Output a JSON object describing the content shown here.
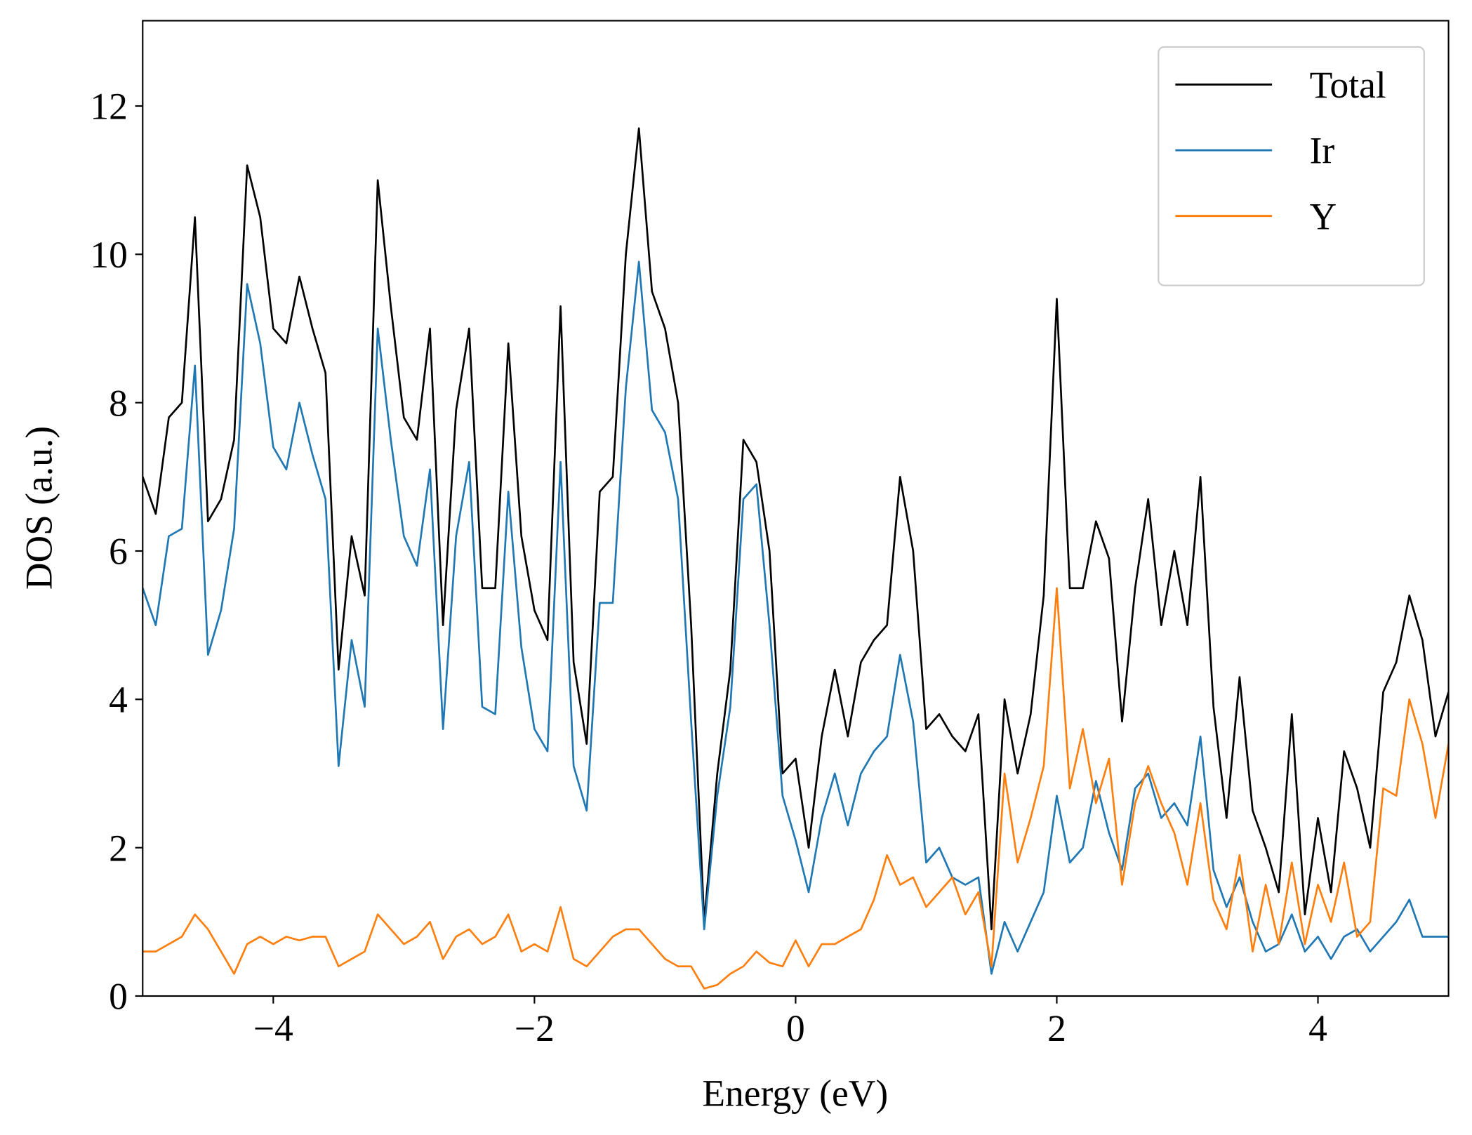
{
  "chart_data": {
    "type": "line",
    "x_label": "Energy (eV)",
    "y_label": "DOS (a.u.)",
    "xlim": [
      -5,
      5
    ],
    "ylim": [
      0,
      13.15
    ],
    "xticks": [
      {
        "value": -4,
        "label": "−4"
      },
      {
        "value": -2,
        "label": "−2"
      },
      0,
      2,
      4
    ],
    "yticks": [
      0,
      2,
      4,
      6,
      8,
      10,
      12
    ],
    "legend": "upper right",
    "grid": false,
    "x": [
      -5.0,
      -4.9,
      -4.8,
      -4.7,
      -4.6,
      -4.5,
      -4.4,
      -4.3,
      -4.2,
      -4.1,
      -4.0,
      -3.9,
      -3.8,
      -3.7,
      -3.6,
      -3.5,
      -3.4,
      -3.3,
      -3.2,
      -3.1,
      -3.0,
      -2.9,
      -2.8,
      -2.7,
      -2.6,
      -2.5,
      -2.4,
      -2.3,
      -2.2,
      -2.1,
      -2.0,
      -1.9,
      -1.8,
      -1.7,
      -1.6,
      -1.5,
      -1.4,
      -1.3,
      -1.2,
      -1.1,
      -1.0,
      -0.9,
      -0.8,
      -0.7,
      -0.6,
      -0.5,
      -0.4,
      -0.3,
      -0.2,
      -0.1,
      0.0,
      0.1,
      0.2,
      0.3,
      0.4,
      0.5,
      0.6,
      0.7,
      0.8,
      0.9,
      1.0,
      1.1,
      1.2,
      1.3,
      1.4,
      1.5,
      1.6,
      1.7,
      1.8,
      1.9,
      2.0,
      2.1,
      2.2,
      2.3,
      2.4,
      2.5,
      2.6,
      2.7,
      2.8,
      2.9,
      3.0,
      3.1,
      3.2,
      3.3,
      3.4,
      3.5,
      3.6,
      3.7,
      3.8,
      3.9,
      4.0,
      4.1,
      4.2,
      4.3,
      4.4,
      4.5,
      4.6,
      4.7,
      4.8,
      4.9,
      5.0
    ],
    "series": [
      {
        "name": "Total",
        "color": "#000000",
        "values": [
          7.0,
          6.5,
          7.8,
          8.0,
          10.5,
          6.4,
          6.7,
          7.5,
          11.2,
          10.5,
          9.0,
          8.8,
          9.7,
          9.0,
          8.4,
          4.4,
          6.2,
          5.4,
          11.0,
          9.3,
          7.8,
          7.5,
          9.0,
          5.0,
          7.9,
          9.0,
          5.5,
          5.5,
          8.8,
          6.2,
          5.2,
          4.8,
          9.3,
          4.5,
          3.4,
          6.8,
          7.0,
          10.0,
          11.7,
          9.5,
          9.0,
          8.0,
          5.0,
          1.0,
          3.0,
          4.4,
          7.5,
          7.2,
          6.0,
          3.0,
          3.2,
          2.0,
          3.5,
          4.4,
          3.5,
          4.5,
          4.8,
          5.0,
          7.0,
          6.0,
          3.6,
          3.8,
          3.5,
          3.3,
          3.8,
          0.9,
          4.0,
          3.0,
          3.8,
          5.4,
          9.4,
          5.5,
          5.5,
          6.4,
          5.9,
          3.7,
          5.5,
          6.7,
          5.0,
          6.0,
          5.0,
          7.0,
          3.9,
          2.4,
          4.3,
          2.5,
          2.0,
          1.4,
          3.8,
          1.1,
          2.4,
          1.4,
          3.3,
          2.8,
          2.0,
          4.1,
          4.5,
          5.4,
          4.8,
          3.5,
          4.1
        ]
      },
      {
        "name": "Ir",
        "color": "#1f77b4",
        "values": [
          5.5,
          5.0,
          6.2,
          6.3,
          8.5,
          4.6,
          5.2,
          6.3,
          9.6,
          8.8,
          7.4,
          7.1,
          8.0,
          7.3,
          6.7,
          3.1,
          4.8,
          3.9,
          9.0,
          7.5,
          6.2,
          5.8,
          7.1,
          3.6,
          6.2,
          7.2,
          3.9,
          3.8,
          6.8,
          4.7,
          3.6,
          3.3,
          7.2,
          3.1,
          2.5,
          5.3,
          5.3,
          8.2,
          9.9,
          7.9,
          7.6,
          6.7,
          3.7,
          0.9,
          2.7,
          3.9,
          6.7,
          6.9,
          5.0,
          2.7,
          2.1,
          1.4,
          2.4,
          3.0,
          2.3,
          3.0,
          3.3,
          3.5,
          4.6,
          3.7,
          1.8,
          2.0,
          1.6,
          1.5,
          1.6,
          0.3,
          1.0,
          0.6,
          1.0,
          1.4,
          2.7,
          1.8,
          2.0,
          2.9,
          2.2,
          1.7,
          2.8,
          3.0,
          2.4,
          2.6,
          2.3,
          3.5,
          1.7,
          1.2,
          1.6,
          1.0,
          0.6,
          0.7,
          1.1,
          0.6,
          0.8,
          0.5,
          0.8,
          0.9,
          0.6,
          0.8,
          1.0,
          1.3,
          0.8,
          0.8,
          0.8
        ]
      },
      {
        "name": "Y",
        "color": "#ff7f0e",
        "values": [
          0.6,
          0.6,
          0.7,
          0.8,
          1.1,
          0.9,
          0.6,
          0.3,
          0.7,
          0.8,
          0.7,
          0.8,
          0.75,
          0.8,
          0.8,
          0.4,
          0.5,
          0.6,
          1.1,
          0.9,
          0.7,
          0.8,
          1.0,
          0.5,
          0.8,
          0.9,
          0.7,
          0.8,
          1.1,
          0.6,
          0.7,
          0.6,
          1.2,
          0.5,
          0.4,
          0.6,
          0.8,
          0.9,
          0.9,
          0.7,
          0.5,
          0.4,
          0.4,
          0.1,
          0.15,
          0.3,
          0.4,
          0.6,
          0.45,
          0.4,
          0.75,
          0.4,
          0.7,
          0.7,
          0.8,
          0.9,
          1.3,
          1.9,
          1.5,
          1.6,
          1.2,
          1.4,
          1.6,
          1.1,
          1.4,
          0.4,
          3.0,
          1.8,
          2.4,
          3.1,
          5.5,
          2.8,
          3.6,
          2.6,
          3.2,
          1.5,
          2.6,
          3.1,
          2.6,
          2.2,
          1.5,
          2.6,
          1.3,
          0.9,
          1.9,
          0.6,
          1.5,
          0.7,
          1.8,
          0.7,
          1.5,
          1.0,
          1.8,
          0.8,
          1.0,
          2.8,
          2.7,
          4.0,
          3.4,
          2.4,
          3.4
        ]
      }
    ]
  }
}
